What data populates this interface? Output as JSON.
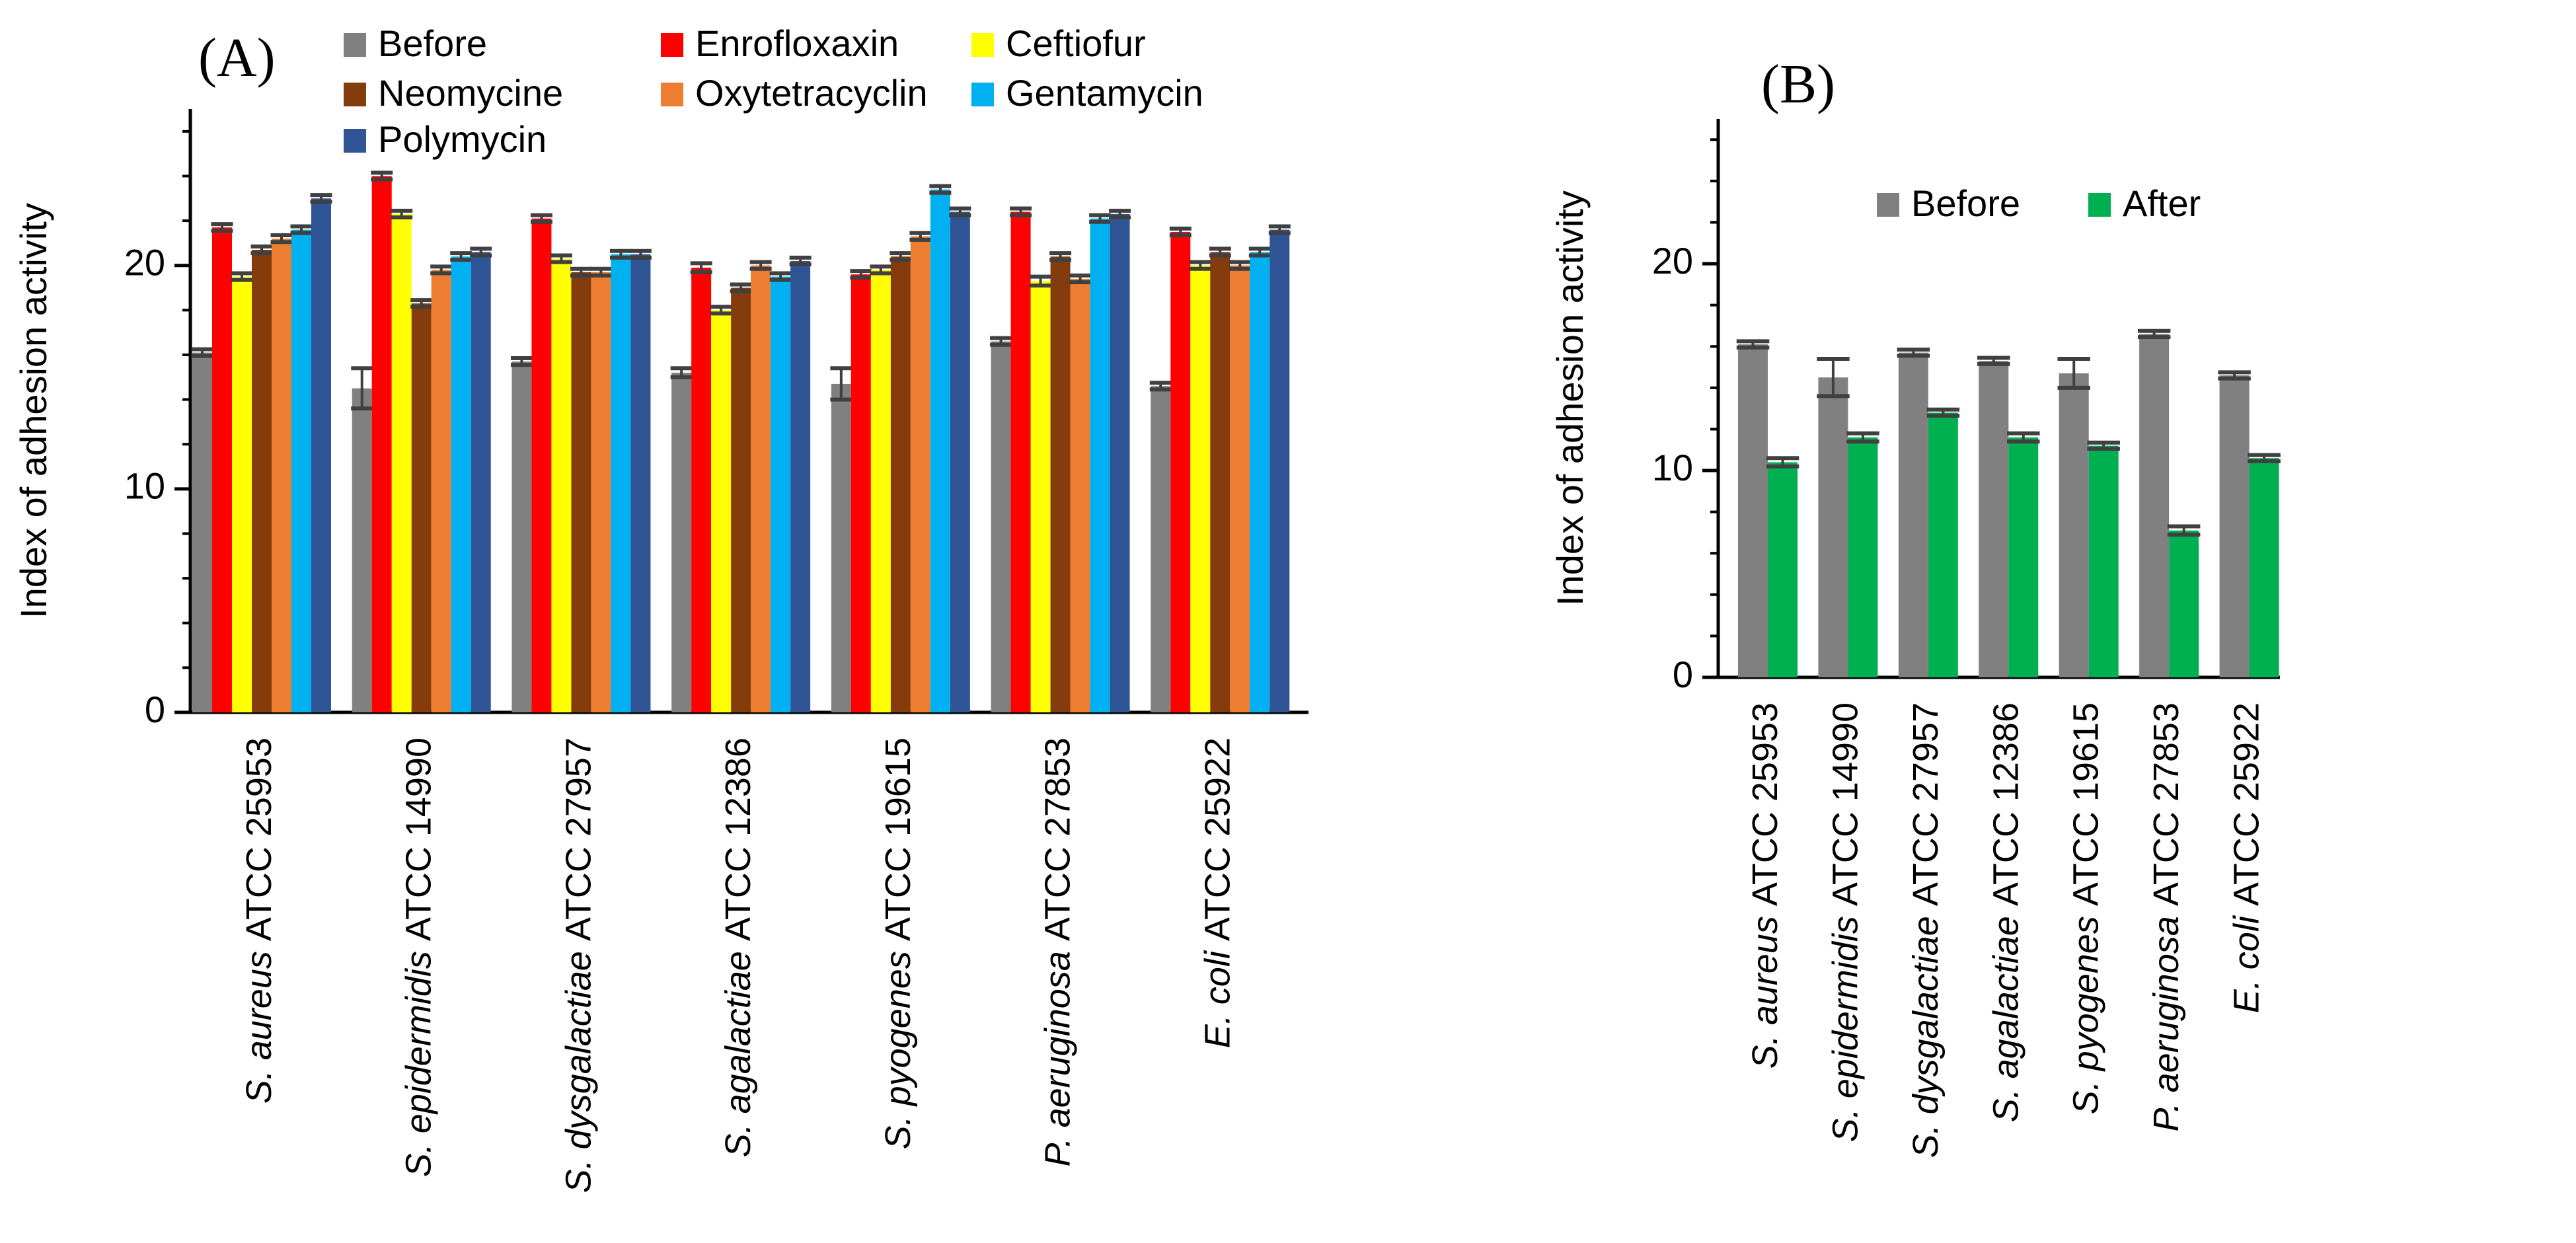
{
  "charts": [
    {
      "panel_label": "(A)",
      "chart_data": {
        "type": "bar",
        "title": "",
        "xlabel": "",
        "ylabel": "Index of adhesion activity",
        "ylim": [
          0,
          27
        ],
        "yticks": [
          0,
          10,
          20
        ],
        "grid": false,
        "legend_position": "top",
        "categories": [
          "S. aureus ATCC 25953",
          "S. epidermidis ATCC 14990",
          "S. dysgalactiae ATCC 27957",
          "S. agalactiae ATCC 12386",
          "S. pyogenes ATCC 19615",
          "P. aeruginosa ATCC 27853",
          "E. coli ATCC 25922"
        ],
        "series": [
          {
            "name": "Before",
            "color": "#808080",
            "values": [
              16.1,
              14.5,
              15.7,
              15.2,
              14.7,
              16.6,
              14.6
            ],
            "errors": [
              0.15,
              0.9,
              0.15,
              0.2,
              0.7,
              0.15,
              0.15
            ]
          },
          {
            "name": "Enrofloxaxin",
            "color": "#ff0000",
            "values": [
              21.7,
              24.0,
              22.1,
              19.9,
              19.6,
              22.4,
              21.5
            ],
            "errors": [
              0.15,
              0.15,
              0.15,
              0.2,
              0.15,
              0.15,
              0.15
            ]
          },
          {
            "name": "Ceftiofur",
            "color": "#ffff00",
            "values": [
              19.5,
              22.3,
              20.3,
              18.0,
              19.8,
              19.3,
              20.0
            ],
            "errors": [
              0.15,
              0.15,
              0.15,
              0.15,
              0.15,
              0.2,
              0.15
            ]
          },
          {
            "name": "Neomycine",
            "color": "#843c0c",
            "values": [
              20.7,
              18.3,
              19.7,
              19.0,
              20.4,
              20.4,
              20.6
            ],
            "errors": [
              0.15,
              0.15,
              0.15,
              0.15,
              0.15,
              0.15,
              0.15
            ]
          },
          {
            "name": "Oxytetracyclin",
            "color": "#ed7d31",
            "values": [
              21.2,
              19.8,
              19.7,
              20.0,
              21.3,
              19.4,
              20.0
            ],
            "errors": [
              0.15,
              0.15,
              0.15,
              0.15,
              0.15,
              0.15,
              0.15
            ]
          },
          {
            "name": "Gentamycin",
            "color": "#00b0f0",
            "values": [
              21.6,
              20.4,
              20.5,
              19.5,
              23.4,
              22.1,
              20.6
            ],
            "errors": [
              0.15,
              0.15,
              0.15,
              0.15,
              0.15,
              0.15,
              0.15
            ]
          },
          {
            "name": "Polymycin",
            "color": "#2f5597",
            "values": [
              23.0,
              20.6,
              20.5,
              20.2,
              22.4,
              22.3,
              21.6
            ],
            "errors": [
              0.15,
              0.15,
              0.15,
              0.15,
              0.15,
              0.15,
              0.15
            ]
          }
        ]
      }
    },
    {
      "panel_label": "(B)",
      "chart_data": {
        "type": "bar",
        "title": "",
        "xlabel": "",
        "ylabel": "Index of adhesion activity",
        "ylim": [
          0,
          27
        ],
        "yticks": [
          0,
          10,
          20
        ],
        "grid": false,
        "legend_position": "top-center",
        "categories": [
          "S. aureus ATCC 25953",
          "S. epidermidis ATCC 14990",
          "S. dysgalactiae ATCC 27957",
          "S. agalactiae ATCC 12386",
          "S. pyogenes ATCC 19615",
          "P. aeruginosa ATCC 27853",
          "E. coli ATCC 25922"
        ],
        "series": [
          {
            "name": "Before",
            "color": "#808080",
            "values": [
              16.1,
              14.5,
              15.7,
              15.3,
              14.7,
              16.6,
              14.6
            ],
            "errors": [
              0.15,
              0.9,
              0.15,
              0.15,
              0.7,
              0.15,
              0.15
            ]
          },
          {
            "name": "After",
            "color": "#00b050",
            "values": [
              10.4,
              11.6,
              12.8,
              11.6,
              11.2,
              7.1,
              10.6
            ],
            "errors": [
              0.2,
              0.2,
              0.15,
              0.2,
              0.15,
              0.2,
              0.15
            ]
          }
        ]
      }
    }
  ]
}
